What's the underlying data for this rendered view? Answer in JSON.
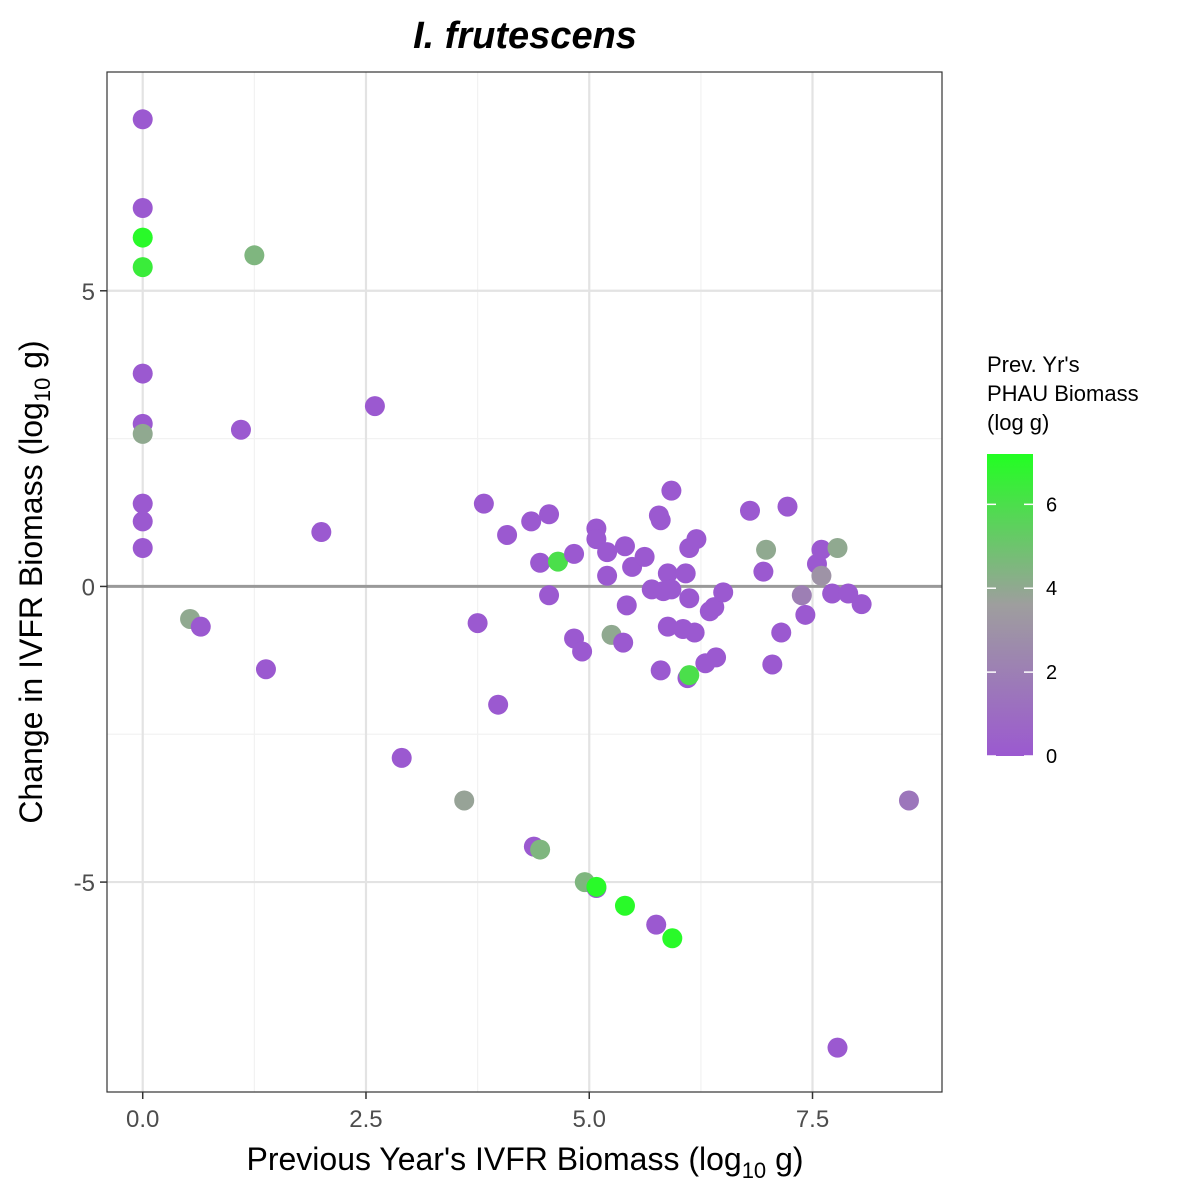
{
  "chart_data": {
    "type": "scatter",
    "title": "I. frutescens",
    "xlabel": {
      "pre": "Previous Year's IVFR Biomass (log",
      "sub": "10",
      "post": " g)"
    },
    "ylabel": {
      "pre": "Change in IVFR Biomass (log",
      "sub": "10",
      "post": " g)"
    },
    "xlim": [
      -0.4,
      8.95
    ],
    "ylim": [
      -8.55,
      8.7
    ],
    "x_ticks": [
      0.0,
      2.5,
      5.0,
      7.5
    ],
    "x_tick_labels": [
      "0.0",
      "2.5",
      "5.0",
      "7.5"
    ],
    "y_ticks": [
      -5,
      0,
      5
    ],
    "y_tick_labels": [
      "-5",
      "0",
      "5"
    ],
    "hline": 0,
    "grid": true,
    "legend": {
      "position": "right",
      "title_lines": [
        "Prev. Yr's",
        "PHAU Biomass",
        "(log   g)"
      ],
      "range": [
        0,
        7.2
      ],
      "ticks": [
        0,
        2,
        4,
        6
      ],
      "tick_labels": [
        "0",
        "2",
        "4",
        "6"
      ],
      "color_low": "#9b59d0",
      "color_mid": "#9e9e9e",
      "color_high": "#22ff22"
    },
    "points": [
      {
        "x": 0.0,
        "y": 7.9,
        "c": 0
      },
      {
        "x": 0.0,
        "y": 6.4,
        "c": 0
      },
      {
        "x": 0.0,
        "y": 5.9,
        "c": 7.0
      },
      {
        "x": 0.0,
        "y": 5.4,
        "c": 6.5
      },
      {
        "x": 0.0,
        "y": 3.6,
        "c": 0
      },
      {
        "x": 0.0,
        "y": 2.75,
        "c": 0
      },
      {
        "x": 0.0,
        "y": 2.58,
        "c": 4.0
      },
      {
        "x": 0.0,
        "y": 1.4,
        "c": 0
      },
      {
        "x": 0.0,
        "y": 1.1,
        "c": 0
      },
      {
        "x": 0.0,
        "y": 0.65,
        "c": 0
      },
      {
        "x": 1.25,
        "y": 5.6,
        "c": 4.5
      },
      {
        "x": 1.1,
        "y": 2.65,
        "c": 0
      },
      {
        "x": 2.6,
        "y": 3.05,
        "c": 0
      },
      {
        "x": 2.0,
        "y": 0.92,
        "c": 0
      },
      {
        "x": 0.53,
        "y": -0.55,
        "c": 4.0
      },
      {
        "x": 0.65,
        "y": -0.68,
        "c": 0
      },
      {
        "x": 1.38,
        "y": -1.4,
        "c": 0
      },
      {
        "x": 2.9,
        "y": -2.9,
        "c": 0
      },
      {
        "x": 3.6,
        "y": -3.62,
        "c": 3.8
      },
      {
        "x": 3.98,
        "y": -2.0,
        "c": 0
      },
      {
        "x": 3.75,
        "y": -0.62,
        "c": 0
      },
      {
        "x": 3.82,
        "y": 1.4,
        "c": 0
      },
      {
        "x": 4.08,
        "y": 0.87,
        "c": 0
      },
      {
        "x": 4.35,
        "y": 1.1,
        "c": 0
      },
      {
        "x": 4.45,
        "y": 0.4,
        "c": 0
      },
      {
        "x": 4.55,
        "y": 1.22,
        "c": 0
      },
      {
        "x": 4.55,
        "y": -0.15,
        "c": 0
      },
      {
        "x": 4.65,
        "y": 0.42,
        "c": 6.0
      },
      {
        "x": 4.83,
        "y": 0.55,
        "c": 0
      },
      {
        "x": 4.83,
        "y": -0.88,
        "c": 0
      },
      {
        "x": 4.92,
        "y": -1.1,
        "c": 0
      },
      {
        "x": 4.38,
        "y": -4.4,
        "c": 0
      },
      {
        "x": 4.45,
        "y": -4.45,
        "c": 4.5
      },
      {
        "x": 4.95,
        "y": -5.0,
        "c": 4.5
      },
      {
        "x": 5.08,
        "y": -5.1,
        "c": 0
      },
      {
        "x": 5.08,
        "y": -5.08,
        "c": 7.0
      },
      {
        "x": 5.4,
        "y": -5.4,
        "c": 7.0
      },
      {
        "x": 5.08,
        "y": 0.98,
        "c": 0
      },
      {
        "x": 5.08,
        "y": 0.8,
        "c": 0
      },
      {
        "x": 5.2,
        "y": 0.58,
        "c": 0
      },
      {
        "x": 5.2,
        "y": 0.18,
        "c": 0
      },
      {
        "x": 5.25,
        "y": -0.82,
        "c": 4.0
      },
      {
        "x": 5.38,
        "y": -0.95,
        "c": 0
      },
      {
        "x": 5.4,
        "y": 0.68,
        "c": 0
      },
      {
        "x": 5.42,
        "y": -0.32,
        "c": 0
      },
      {
        "x": 5.48,
        "y": 0.33,
        "c": 0
      },
      {
        "x": 5.62,
        "y": 0.5,
        "c": 0
      },
      {
        "x": 5.7,
        "y": -0.05,
        "c": 0
      },
      {
        "x": 5.78,
        "y": 1.2,
        "c": 0
      },
      {
        "x": 5.8,
        "y": 1.12,
        "c": 0
      },
      {
        "x": 5.8,
        "y": -1.42,
        "c": 0
      },
      {
        "x": 5.83,
        "y": -0.08,
        "c": 0
      },
      {
        "x": 5.88,
        "y": 0.22,
        "c": 0
      },
      {
        "x": 5.88,
        "y": -0.68,
        "c": 0
      },
      {
        "x": 5.92,
        "y": 1.62,
        "c": 0
      },
      {
        "x": 5.92,
        "y": -0.05,
        "c": 0
      },
      {
        "x": 6.05,
        "y": -0.72,
        "c": 0
      },
      {
        "x": 6.08,
        "y": 0.22,
        "c": 0
      },
      {
        "x": 6.1,
        "y": -1.55,
        "c": 0
      },
      {
        "x": 6.12,
        "y": -1.5,
        "c": 6.0
      },
      {
        "x": 6.12,
        "y": -0.2,
        "c": 0
      },
      {
        "x": 6.12,
        "y": 0.65,
        "c": 0
      },
      {
        "x": 6.18,
        "y": -0.78,
        "c": 0
      },
      {
        "x": 6.2,
        "y": 0.8,
        "c": 0
      },
      {
        "x": 6.3,
        "y": -1.3,
        "c": 0
      },
      {
        "x": 6.35,
        "y": -0.42,
        "c": 0
      },
      {
        "x": 6.4,
        "y": -0.35,
        "c": 0
      },
      {
        "x": 6.42,
        "y": -1.2,
        "c": 0
      },
      {
        "x": 6.5,
        "y": -0.1,
        "c": 0
      },
      {
        "x": 5.75,
        "y": -5.72,
        "c": 0
      },
      {
        "x": 5.93,
        "y": -5.95,
        "c": 7.0
      },
      {
        "x": 6.8,
        "y": 1.28,
        "c": 0
      },
      {
        "x": 6.95,
        "y": 0.25,
        "c": 0
      },
      {
        "x": 6.98,
        "y": 0.62,
        "c": 4.0
      },
      {
        "x": 7.05,
        "y": -1.32,
        "c": 0
      },
      {
        "x": 7.15,
        "y": -0.78,
        "c": 0
      },
      {
        "x": 7.22,
        "y": 1.35,
        "c": 0
      },
      {
        "x": 7.38,
        "y": -0.15,
        "c": 2.0
      },
      {
        "x": 7.42,
        "y": -0.48,
        "c": 0
      },
      {
        "x": 7.55,
        "y": 0.38,
        "c": 0
      },
      {
        "x": 7.6,
        "y": 0.62,
        "c": 0
      },
      {
        "x": 7.6,
        "y": 0.18,
        "c": 3.0
      },
      {
        "x": 7.72,
        "y": -0.12,
        "c": 0
      },
      {
        "x": 7.78,
        "y": 0.65,
        "c": 4.0
      },
      {
        "x": 7.9,
        "y": -0.12,
        "c": 0
      },
      {
        "x": 8.05,
        "y": -0.3,
        "c": 0
      },
      {
        "x": 8.58,
        "y": -3.62,
        "c": 1.5
      },
      {
        "x": 7.78,
        "y": -7.8,
        "c": 0
      }
    ]
  }
}
